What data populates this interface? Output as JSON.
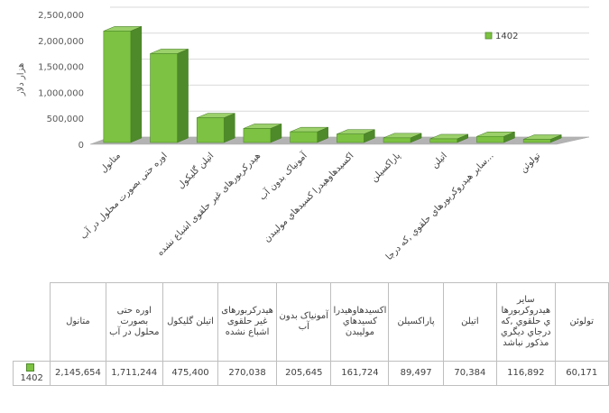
{
  "chart_data": {
    "type": "bar",
    "title": "",
    "xlabel": "",
    "ylabel": "هزار دلار",
    "ylim": [
      0,
      2500000
    ],
    "yticks": [
      "0",
      "500,000",
      "1,000,000",
      "1,500,000",
      "2,000,000",
      "2,500,000"
    ],
    "grid": true,
    "legend_position": "top-right",
    "categories": [
      "متانول",
      "اوره حتی بصورت محلول در آب",
      "اتیلن گلیکول",
      "هیدرکربورهای غیر حلقوی اشباع نشده",
      "آمونیاک بدون آب",
      "اکسیدهاوهیدرا کسیدهاي مولیبدن",
      "پاراکسیلن",
      "اتیلن",
      "سایر هیدروکربورهاي حلقوي ,که درجاي دیگري مذکور نباشد",
      "تولوئن"
    ],
    "category_axis_labels": [
      "متانول",
      "اوره حتی بصورت محلول در آب",
      "اتیلن گلیکول",
      "هیدرکربورهای غیر حلقوی اشباع نشده",
      "آمونیاک بدون آب",
      "اکسیدهاوهیدرا کسیدهاي مولیبدن",
      "پاراکسیلن",
      "اتیلن",
      "سایر هیدروکربورهاي حلقوي ,که درجا...",
      "تولوئن"
    ],
    "table_header_labels": [
      "متانول",
      "اوره حتی بصورت محلول در آب",
      "اتیلن گلیکول",
      "هیدرکربورهای غیر حلقوی اشباع نشده",
      "آمونیاک بدون آب",
      "اکسیدهاوهیدرا کسیدهاي مولیبدن",
      "پاراکسیلن",
      "اتیلن",
      "سایر هیدروکربورها ي حلقوي ,که درجاي دیگري مذکور نباشد",
      "تولوئن"
    ],
    "series": [
      {
        "name": "1402",
        "color": "#7dc242",
        "values": [
          2145654,
          1711244,
          475400,
          270038,
          205645,
          161724,
          89497,
          70384,
          116892,
          60171
        ],
        "value_labels": [
          "2,145,654",
          "1,711,244",
          "475,400",
          "270,038",
          "205,645",
          "161,724",
          "89,497",
          "70,384",
          "116,892",
          "60,171"
        ]
      }
    ]
  }
}
